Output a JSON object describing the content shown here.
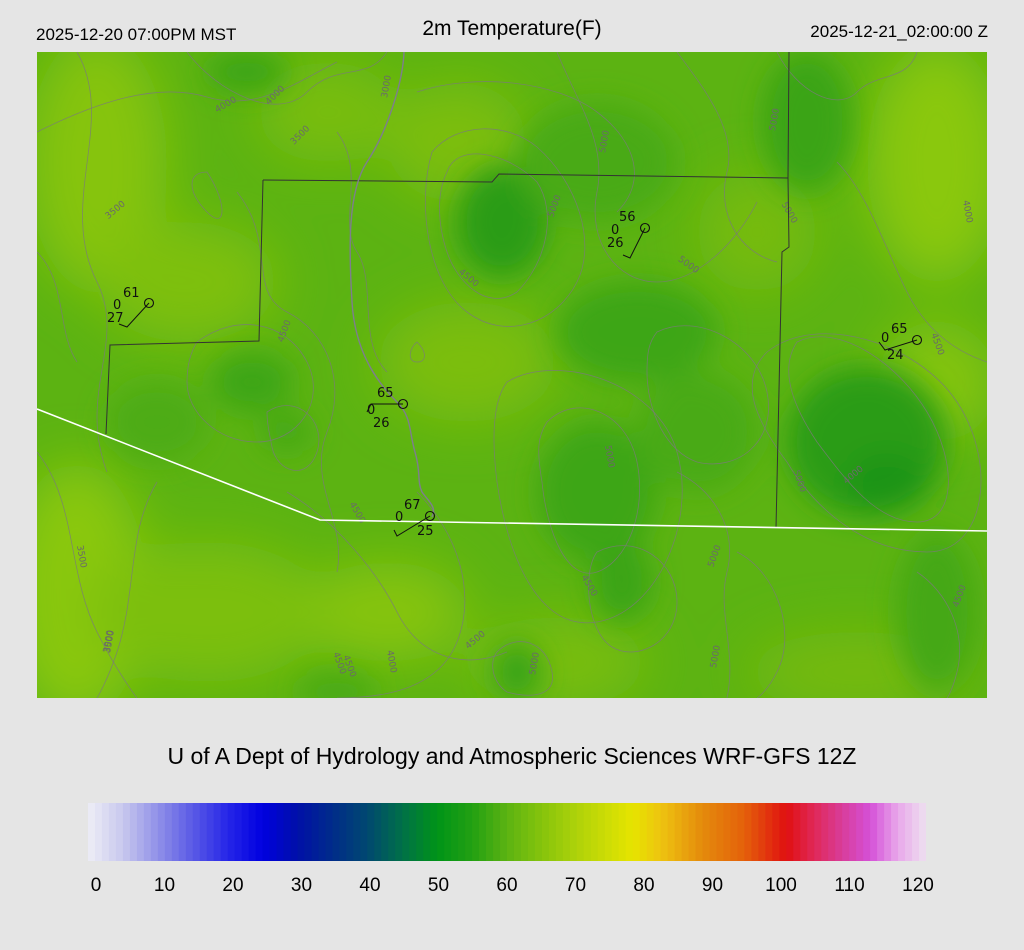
{
  "header": {
    "local_time": "2025-12-20 07:00PM MST",
    "title": "2m Temperature(F)",
    "valid_time": "2025-12-21_02:00:00 Z"
  },
  "credit": "U of A Dept of Hydrology and Atmospheric Sciences WRF-GFS 12Z",
  "colors": {
    "background": "#e5e5e5",
    "map_base": "#5cb312",
    "state_boundary": "#ffffff",
    "county_boundary": "#333333",
    "contour": "#7a7a7a"
  },
  "contour_labels": [
    "4000",
    "4000",
    "3000",
    "3500",
    "3500",
    "4500",
    "5000",
    "5000",
    "4500",
    "5000",
    "5000",
    "5000",
    "4000",
    "4500",
    "3500",
    "4500",
    "5000",
    "5000",
    "4500",
    "3500",
    "4000",
    "4500",
    "4500",
    "3000",
    "4500",
    "4000",
    "5000",
    "5000",
    "4500",
    "5000"
  ],
  "stations": [
    {
      "temp": "61",
      "dewpoint": "27",
      "cloud": "0"
    },
    {
      "temp": "56",
      "dewpoint": "26",
      "cloud": "0"
    },
    {
      "temp": "65",
      "dewpoint": "24",
      "cloud": "0"
    },
    {
      "temp": "65",
      "dewpoint": "26",
      "cloud": "0"
    },
    {
      "temp": "67",
      "dewpoint": "25",
      "cloud": "0"
    }
  ],
  "colorbar": {
    "ticks": [
      "0",
      "10",
      "20",
      "30",
      "40",
      "50",
      "60",
      "70",
      "80",
      "90",
      "100",
      "110",
      "120"
    ],
    "min": 0,
    "max": 120,
    "stops": [
      {
        "value": 0,
        "color": "#eeeef6"
      },
      {
        "value": 5,
        "color": "#c8c8ee"
      },
      {
        "value": 10,
        "color": "#9090e8"
      },
      {
        "value": 15,
        "color": "#5a5ae6"
      },
      {
        "value": 20,
        "color": "#2626e8"
      },
      {
        "value": 25,
        "color": "#0000e0"
      },
      {
        "value": 30,
        "color": "#0010a8"
      },
      {
        "value": 35,
        "color": "#002c8a"
      },
      {
        "value": 40,
        "color": "#004870"
      },
      {
        "value": 45,
        "color": "#007048"
      },
      {
        "value": 50,
        "color": "#009418"
      },
      {
        "value": 55,
        "color": "#22a012"
      },
      {
        "value": 60,
        "color": "#5cb312"
      },
      {
        "value": 65,
        "color": "#86c40c"
      },
      {
        "value": 70,
        "color": "#aed20a"
      },
      {
        "value": 75,
        "color": "#d2de04"
      },
      {
        "value": 78,
        "color": "#e6e400"
      },
      {
        "value": 82,
        "color": "#eec410"
      },
      {
        "value": 88,
        "color": "#e48a0c"
      },
      {
        "value": 94,
        "color": "#e4600a"
      },
      {
        "value": 100,
        "color": "#e01010"
      },
      {
        "value": 104,
        "color": "#e02858"
      },
      {
        "value": 108,
        "color": "#d83c9a"
      },
      {
        "value": 112,
        "color": "#d450d8"
      },
      {
        "value": 116,
        "color": "#e8a8ea"
      },
      {
        "value": 120,
        "color": "#eee0f0"
      }
    ]
  }
}
